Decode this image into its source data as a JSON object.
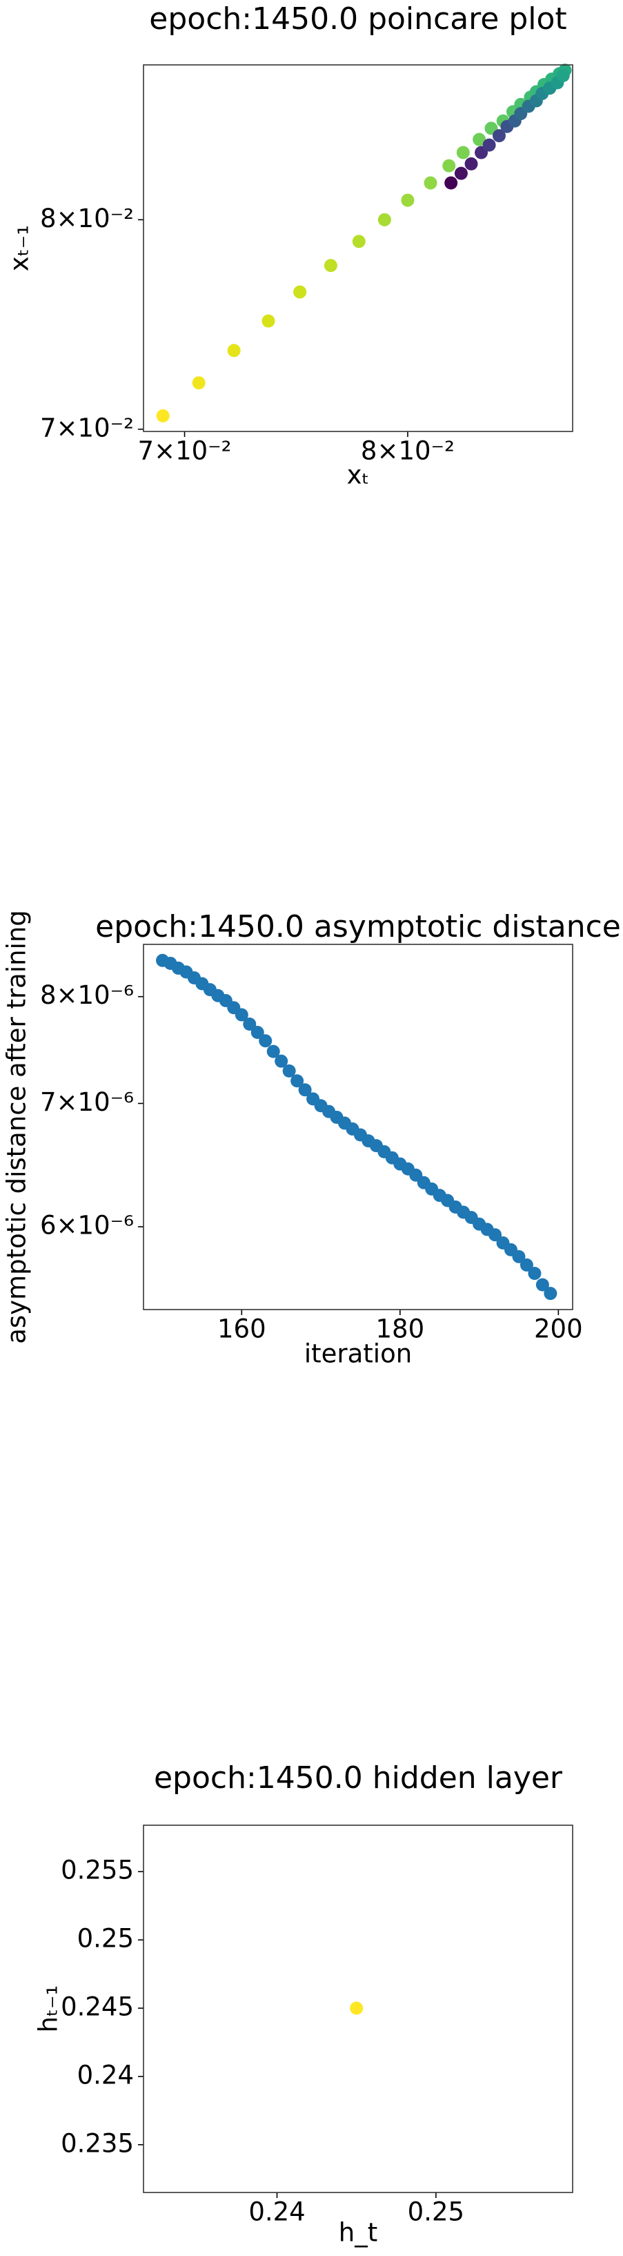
{
  "chart_data": [
    {
      "type": "scatter",
      "title": "epoch:1450.0 poincare plot",
      "xlabel": "xₜ",
      "ylabel": "xₜ₋₁",
      "xscale": "log",
      "yscale": "log",
      "xlim": [
        0.0683,
        0.0883
      ],
      "ylim": [
        0.0699,
        0.0883
      ],
      "xticks": [
        {
          "value": 0.07,
          "label": "7×10⁻²"
        },
        {
          "value": 0.08,
          "label": "8×10⁻²"
        }
      ],
      "yticks": [
        {
          "value": 0.07,
          "label": "7×10⁻²"
        },
        {
          "value": 0.08,
          "label": "8×10⁻²"
        }
      ],
      "x": [
        0.0691,
        0.0706,
        0.0721,
        0.0736,
        0.075,
        0.0764,
        0.0777,
        0.0789,
        0.08,
        0.0811,
        0.082,
        0.0827,
        0.0835,
        0.0841,
        0.0847,
        0.0852,
        0.0856,
        0.0861,
        0.0864,
        0.0868,
        0.0872,
        0.0876,
        0.0879,
        0.0821,
        0.0826,
        0.0831,
        0.0836,
        0.084,
        0.0845,
        0.0849,
        0.0853,
        0.0856,
        0.086,
        0.0864,
        0.0867,
        0.0871,
        0.0875,
        0.0878
      ],
      "values": [
        0.0706,
        0.0721,
        0.0736,
        0.075,
        0.0764,
        0.0777,
        0.0789,
        0.08,
        0.081,
        0.0819,
        0.0828,
        0.0835,
        0.0842,
        0.0848,
        0.0852,
        0.0857,
        0.0861,
        0.0865,
        0.0868,
        0.0872,
        0.0875,
        0.0878,
        0.088,
        0.0819,
        0.0824,
        0.0829,
        0.0835,
        0.0839,
        0.0844,
        0.0849,
        0.0852,
        0.0856,
        0.086,
        0.0863,
        0.0867,
        0.087,
        0.0873,
        0.0877
      ],
      "colors": [
        "#fde725",
        "#f1e51d",
        "#e5e419",
        "#d8e219",
        "#cde11d",
        "#c0df25",
        "#b5de2b",
        "#a8db34",
        "#9bd93c",
        "#8fd744",
        "#84d44b",
        "#7ad151",
        "#6ece58",
        "#65cb5e",
        "#5ec962",
        "#54c568",
        "#4ac16d",
        "#40bd72",
        "#38b977",
        "#32b67a",
        "#2db27d",
        "#28ae80",
        "#25ab82",
        "#440154",
        "#471063",
        "#481f70",
        "#472d7b",
        "#443a83",
        "#404688",
        "#3b528b",
        "#355f8d",
        "#31688e",
        "#2c728e",
        "#287c8e",
        "#24868e",
        "#21918c",
        "#1f9a8a",
        "#20a386"
      ]
    },
    {
      "type": "scatter",
      "title": "epoch:1450.0 asymptotic distance",
      "xlabel": "iteration",
      "ylabel": "asymptotic distance after training",
      "xscale": "linear",
      "yscale": "log",
      "color": "#1f77b4",
      "xlim": [
        147.6,
        201.8
      ],
      "ylim": [
        5.41e-06,
        8.54e-06
      ],
      "xticks": [
        160,
        180,
        200
      ],
      "yticks": [
        {
          "value": 6e-06,
          "label": "6×10⁻⁶"
        },
        {
          "value": 7e-06,
          "label": "7×10⁻⁶"
        },
        {
          "value": 8e-06,
          "label": "8×10⁻⁶"
        }
      ],
      "x": [
        150,
        151,
        152,
        153,
        154,
        155,
        156,
        157,
        158,
        159,
        160,
        161,
        162,
        163,
        164,
        165,
        166,
        167,
        168,
        169,
        170,
        171,
        172,
        173,
        174,
        175,
        176,
        177,
        178,
        179,
        180,
        181,
        182,
        183,
        184,
        185,
        186,
        187,
        188,
        189,
        190,
        191,
        192,
        193,
        194,
        195,
        196,
        197,
        198,
        199
      ],
      "values": [
        8.37e-06,
        8.34e-06,
        8.29e-06,
        8.25e-06,
        8.19e-06,
        8.13e-06,
        8.07e-06,
        8.01e-06,
        7.96e-06,
        7.89e-06,
        7.82e-06,
        7.73e-06,
        7.65e-06,
        7.57e-06,
        7.47e-06,
        7.38e-06,
        7.29e-06,
        7.2e-06,
        7.12e-06,
        7.04e-06,
        6.98e-06,
        6.93e-06,
        6.88e-06,
        6.83e-06,
        6.78e-06,
        6.73e-06,
        6.68e-06,
        6.64e-06,
        6.59e-06,
        6.54e-06,
        6.49e-06,
        6.45e-06,
        6.4e-06,
        6.34e-06,
        6.29e-06,
        6.24e-06,
        6.2e-06,
        6.15e-06,
        6.11e-06,
        6.07e-06,
        6.02e-06,
        5.98e-06,
        5.94e-06,
        5.88e-06,
        5.83e-06,
        5.78e-06,
        5.72e-06,
        5.66e-06,
        5.58e-06,
        5.52e-06
      ]
    },
    {
      "type": "scatter",
      "title": "epoch:1450.0 hidden layer",
      "xlabel": "h_t",
      "ylabel": "hₜ₋₁",
      "xscale": "linear",
      "yscale": "linear",
      "color": "#fde725",
      "xlim": [
        0.2316,
        0.2586
      ],
      "ylim": [
        0.2315,
        0.2584
      ],
      "xticks": [
        0.24,
        0.25
      ],
      "yticks": [
        0.235,
        0.24,
        0.245,
        0.25,
        0.255
      ],
      "x": [
        0.245
      ],
      "values": [
        0.245
      ]
    }
  ]
}
